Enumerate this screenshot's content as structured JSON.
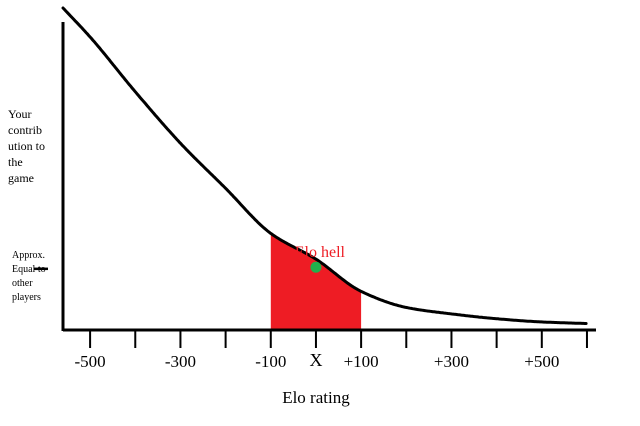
{
  "chart_data": {
    "type": "line",
    "title": "",
    "xlabel": "Elo rating",
    "ylabel_lines": [
      "Your",
      "contrib",
      "ution to",
      "the",
      "game"
    ],
    "ytick_note_lines": [
      "Approx.",
      "Equal to",
      "other",
      "players"
    ],
    "xlim": [
      -560,
      620
    ],
    "ylim": [
      0,
      100
    ],
    "xtick_values": [
      -500,
      -400,
      -300,
      -200,
      -100,
      0,
      100,
      200,
      300,
      400,
      500,
      600
    ],
    "xtick_labels": [
      {
        "value": -500,
        "text": "-500"
      },
      {
        "value": -300,
        "text": "-300"
      },
      {
        "value": -100,
        "text": "-100"
      },
      {
        "value": 100,
        "text": "+100"
      },
      {
        "value": 300,
        "text": "+300"
      },
      {
        "value": 500,
        "text": "+500"
      }
    ],
    "x_marker": {
      "value": 0,
      "text": "X"
    },
    "ytick_value": 19,
    "series": [
      {
        "x": [
          -560,
          -500,
          -400,
          -300,
          -200,
          -100,
          0,
          100,
          200,
          300,
          400,
          500,
          600
        ],
        "y": [
          100,
          91,
          74,
          58,
          44,
          30,
          22,
          12,
          7,
          5,
          3.5,
          2.5,
          2
        ]
      }
    ],
    "shaded_region": {
      "x_start": -100,
      "x_end": 100,
      "label": "Elo hell",
      "color": "#ee1c24"
    },
    "point": {
      "x": 0,
      "y": 19.5,
      "color": "#22b14c"
    },
    "grid": false,
    "legend": "none"
  }
}
